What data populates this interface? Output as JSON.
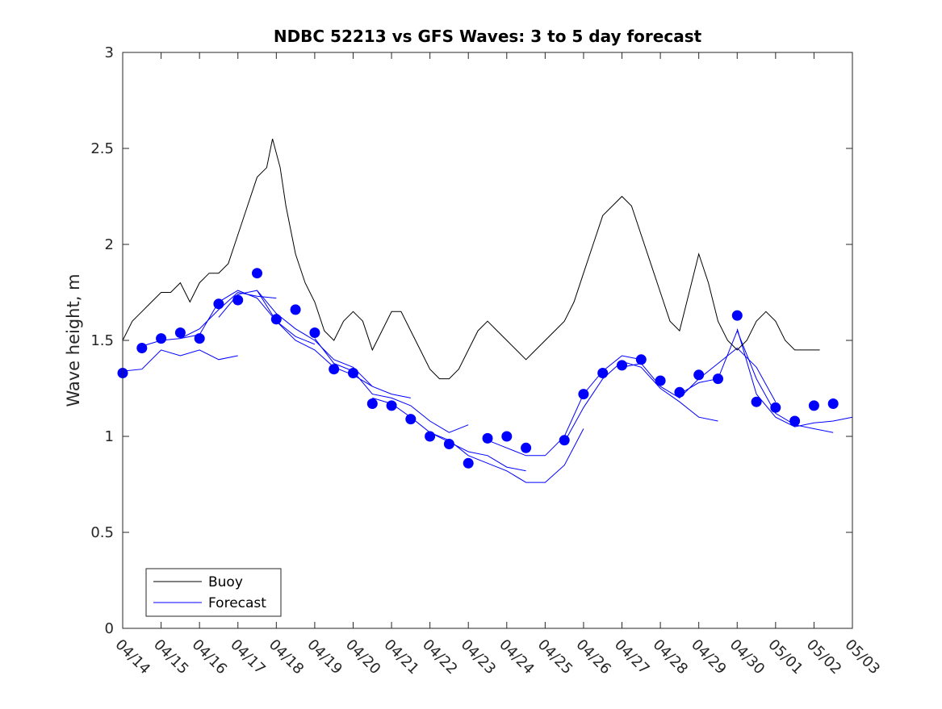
{
  "chart_data": {
    "type": "line",
    "title": "NDBC 52213 vs GFS Waves: 3 to 5 day forecast",
    "xlabel": "",
    "ylabel": "Wave height, m",
    "xlim": [
      "04/14",
      "05/03"
    ],
    "ylim": [
      0,
      3
    ],
    "yticks": [
      "0",
      "0.5",
      "1",
      "1.5",
      "2",
      "2.5",
      "3"
    ],
    "xticks": [
      "04/14",
      "04/15",
      "04/16",
      "04/17",
      "04/18",
      "04/19",
      "04/20",
      "04/21",
      "04/22",
      "04/23",
      "04/24",
      "04/25",
      "04/26",
      "04/27",
      "04/28",
      "04/29",
      "04/30",
      "05/01",
      "05/02",
      "05/03"
    ],
    "grid": false,
    "legend_position": "bottom-left",
    "legend": [
      "Buoy",
      "Forecast"
    ],
    "colors": {
      "buoy": "#000000",
      "forecast": "#0000ff",
      "axes": "#262626"
    },
    "x_units": "days since 04/14",
    "series": [
      {
        "name": "Buoy",
        "points": [
          [
            0.0,
            1.5
          ],
          [
            0.25,
            1.6
          ],
          [
            0.5,
            1.65
          ],
          [
            0.75,
            1.7
          ],
          [
            1.0,
            1.75
          ],
          [
            1.25,
            1.75
          ],
          [
            1.5,
            1.8
          ],
          [
            1.75,
            1.7
          ],
          [
            2.0,
            1.8
          ],
          [
            2.25,
            1.85
          ],
          [
            2.5,
            1.85
          ],
          [
            2.75,
            1.9
          ],
          [
            3.0,
            2.05
          ],
          [
            3.25,
            2.2
          ],
          [
            3.5,
            2.35
          ],
          [
            3.75,
            2.4
          ],
          [
            3.9,
            2.55
          ],
          [
            4.1,
            2.4
          ],
          [
            4.25,
            2.2
          ],
          [
            4.5,
            1.95
          ],
          [
            4.75,
            1.8
          ],
          [
            5.0,
            1.7
          ],
          [
            5.25,
            1.55
          ],
          [
            5.5,
            1.5
          ],
          [
            5.75,
            1.6
          ],
          [
            6.0,
            1.65
          ],
          [
            6.25,
            1.6
          ],
          [
            6.5,
            1.45
          ],
          [
            6.75,
            1.55
          ],
          [
            7.0,
            1.65
          ],
          [
            7.25,
            1.65
          ],
          [
            7.5,
            1.55
          ],
          [
            7.75,
            1.45
          ],
          [
            8.0,
            1.35
          ],
          [
            8.25,
            1.3
          ],
          [
            8.5,
            1.3
          ],
          [
            8.75,
            1.35
          ],
          [
            9.0,
            1.45
          ],
          [
            9.25,
            1.55
          ],
          [
            9.5,
            1.6
          ],
          [
            9.75,
            1.55
          ],
          [
            10.0,
            1.5
          ],
          [
            10.25,
            1.45
          ],
          [
            10.5,
            1.4
          ],
          [
            10.75,
            1.45
          ],
          [
            11.0,
            1.5
          ],
          [
            11.25,
            1.55
          ],
          [
            11.5,
            1.6
          ],
          [
            11.75,
            1.7
          ],
          [
            12.0,
            1.85
          ],
          [
            12.25,
            2.0
          ],
          [
            12.5,
            2.15
          ],
          [
            12.75,
            2.2
          ],
          [
            13.0,
            2.25
          ],
          [
            13.25,
            2.2
          ],
          [
            13.5,
            2.05
          ],
          [
            13.75,
            1.9
          ],
          [
            14.0,
            1.75
          ],
          [
            14.25,
            1.6
          ],
          [
            14.5,
            1.55
          ],
          [
            14.75,
            1.75
          ],
          [
            15.0,
            1.95
          ],
          [
            15.25,
            1.8
          ],
          [
            15.5,
            1.6
          ],
          [
            15.75,
            1.5
          ],
          [
            16.0,
            1.45
          ],
          [
            16.25,
            1.5
          ],
          [
            16.5,
            1.6
          ],
          [
            16.75,
            1.65
          ],
          [
            17.0,
            1.6
          ],
          [
            17.25,
            1.5
          ],
          [
            17.5,
            1.45
          ],
          [
            17.75,
            1.45
          ],
          [
            18.0,
            1.45
          ],
          [
            18.15,
            1.45
          ]
        ]
      },
      {
        "name": "Forecast",
        "points": [
          [
            0.0,
            1.33
          ],
          [
            0.5,
            1.46
          ],
          [
            1.0,
            1.51
          ],
          [
            1.5,
            1.54
          ],
          [
            2.0,
            1.51
          ],
          [
            2.5,
            1.69
          ],
          [
            3.0,
            1.71
          ],
          [
            3.5,
            1.85
          ],
          [
            4.0,
            1.61
          ],
          [
            4.5,
            1.66
          ],
          [
            5.0,
            1.54
          ],
          [
            5.5,
            1.35
          ],
          [
            6.0,
            1.33
          ],
          [
            6.5,
            1.17
          ],
          [
            7.0,
            1.16
          ],
          [
            7.5,
            1.09
          ],
          [
            8.0,
            1.0
          ],
          [
            8.5,
            0.96
          ],
          [
            9.0,
            0.86
          ],
          [
            9.5,
            0.99
          ],
          [
            10.0,
            1.0
          ],
          [
            10.5,
            0.94
          ],
          [
            11.5,
            0.98
          ],
          [
            12.0,
            1.22
          ],
          [
            12.5,
            1.33
          ],
          [
            13.0,
            1.37
          ],
          [
            13.5,
            1.4
          ],
          [
            14.0,
            1.29
          ],
          [
            14.5,
            1.23
          ],
          [
            15.0,
            1.32
          ],
          [
            15.5,
            1.3
          ],
          [
            16.0,
            1.63
          ],
          [
            16.5,
            1.18
          ],
          [
            17.0,
            1.15
          ],
          [
            17.5,
            1.08
          ],
          [
            18.0,
            1.16
          ],
          [
            18.5,
            1.17
          ]
        ]
      }
    ],
    "forecast_runs": [
      [
        [
          0.0,
          1.34
        ],
        [
          0.5,
          1.35
        ],
        [
          1.0,
          1.45
        ],
        [
          1.5,
          1.42
        ],
        [
          2.0,
          1.45
        ],
        [
          2.5,
          1.4
        ],
        [
          3.0,
          1.42
        ]
      ],
      [
        [
          0.5,
          1.47
        ],
        [
          1.0,
          1.5
        ],
        [
          1.5,
          1.51
        ],
        [
          2.0,
          1.56
        ],
        [
          2.5,
          1.66
        ],
        [
          3.0,
          1.75
        ],
        [
          3.5,
          1.73
        ],
        [
          4.0,
          1.72
        ]
      ],
      [
        [
          1.5,
          1.51
        ],
        [
          2.0,
          1.53
        ],
        [
          2.5,
          1.7
        ],
        [
          3.0,
          1.76
        ],
        [
          3.5,
          1.72
        ],
        [
          4.0,
          1.6
        ],
        [
          4.5,
          1.52
        ],
        [
          5.0,
          1.48
        ]
      ],
      [
        [
          2.5,
          1.62
        ],
        [
          3.0,
          1.74
        ],
        [
          3.5,
          1.76
        ],
        [
          4.0,
          1.6
        ],
        [
          4.5,
          1.5
        ],
        [
          5.0,
          1.45
        ],
        [
          5.5,
          1.36
        ],
        [
          6.0,
          1.32
        ],
        [
          6.5,
          1.26
        ]
      ],
      [
        [
          3.5,
          1.76
        ],
        [
          4.0,
          1.64
        ],
        [
          4.5,
          1.56
        ],
        [
          5.0,
          1.5
        ],
        [
          5.5,
          1.4
        ],
        [
          6.0,
          1.36
        ],
        [
          6.5,
          1.26
        ],
        [
          7.0,
          1.22
        ],
        [
          7.5,
          1.2
        ]
      ],
      [
        [
          5.0,
          1.51
        ],
        [
          5.5,
          1.38
        ],
        [
          6.0,
          1.34
        ],
        [
          6.5,
          1.22
        ],
        [
          7.0,
          1.2
        ],
        [
          7.5,
          1.16
        ],
        [
          8.0,
          1.08
        ],
        [
          8.5,
          1.02
        ],
        [
          9.0,
          1.06
        ]
      ],
      [
        [
          6.5,
          1.2
        ],
        [
          7.0,
          1.17
        ],
        [
          7.5,
          1.1
        ],
        [
          8.0,
          1.02
        ],
        [
          8.5,
          0.97
        ],
        [
          9.0,
          0.92
        ],
        [
          9.5,
          0.9
        ],
        [
          10.0,
          0.84
        ],
        [
          10.5,
          0.82
        ]
      ],
      [
        [
          8.0,
          1.02
        ],
        [
          8.5,
          0.98
        ],
        [
          9.0,
          0.9
        ],
        [
          9.5,
          0.86
        ],
        [
          10.0,
          0.82
        ],
        [
          10.5,
          0.76
        ],
        [
          11.0,
          0.76
        ],
        [
          11.5,
          0.85
        ],
        [
          12.0,
          1.04
        ]
      ],
      [
        [
          9.5,
          0.98
        ],
        [
          10.0,
          0.94
        ],
        [
          10.5,
          0.9
        ],
        [
          11.0,
          0.9
        ],
        [
          11.5,
          1.0
        ],
        [
          12.0,
          1.22
        ],
        [
          12.5,
          1.34
        ],
        [
          13.0,
          1.42
        ],
        [
          13.5,
          1.4
        ]
      ],
      [
        [
          11.5,
          0.97
        ],
        [
          12.0,
          1.15
        ],
        [
          12.5,
          1.3
        ],
        [
          13.0,
          1.39
        ],
        [
          13.5,
          1.36
        ],
        [
          14.0,
          1.25
        ],
        [
          14.5,
          1.18
        ],
        [
          15.0,
          1.1
        ],
        [
          15.5,
          1.08
        ]
      ],
      [
        [
          13.0,
          1.36
        ],
        [
          13.5,
          1.38
        ],
        [
          14.0,
          1.26
        ],
        [
          14.5,
          1.2
        ],
        [
          15.0,
          1.3
        ],
        [
          15.5,
          1.38
        ],
        [
          16.0,
          1.46
        ],
        [
          16.5,
          1.36
        ],
        [
          17.0,
          1.18
        ]
      ],
      [
        [
          14.5,
          1.22
        ],
        [
          15.0,
          1.28
        ],
        [
          15.5,
          1.3
        ],
        [
          16.0,
          1.55
        ],
        [
          16.5,
          1.3
        ],
        [
          17.0,
          1.12
        ],
        [
          17.5,
          1.06
        ],
        [
          18.0,
          1.04
        ],
        [
          18.5,
          1.02
        ]
      ],
      [
        [
          16.0,
          1.56
        ],
        [
          16.5,
          1.22
        ],
        [
          17.0,
          1.1
        ],
        [
          17.5,
          1.05
        ],
        [
          18.0,
          1.07
        ],
        [
          18.5,
          1.08
        ],
        [
          19.0,
          1.1
        ]
      ]
    ]
  }
}
